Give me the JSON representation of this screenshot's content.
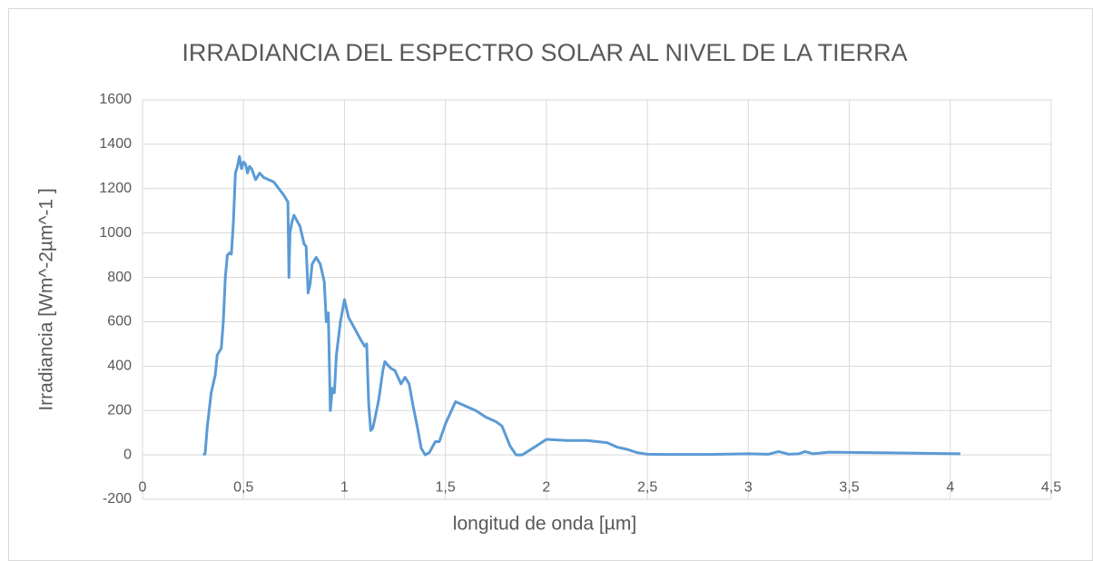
{
  "chart_data": {
    "type": "line",
    "title": "IRRADIANCIA DEL ESPECTRO SOLAR AL NIVEL DE LA TIERRA",
    "xlabel": "longitud de onda [µm]",
    "ylabel": "Irradiancia [Wm^-2µm^-1  ]",
    "x": [
      0.3,
      0.31,
      0.32,
      0.33,
      0.34,
      0.36,
      0.37,
      0.39,
      0.4,
      0.41,
      0.42,
      0.43,
      0.44,
      0.45,
      0.46,
      0.47,
      0.48,
      0.49,
      0.5,
      0.51,
      0.52,
      0.53,
      0.54,
      0.56,
      0.58,
      0.6,
      0.65,
      0.7,
      0.72,
      0.725,
      0.73,
      0.74,
      0.75,
      0.78,
      0.8,
      0.81,
      0.82,
      0.83,
      0.84,
      0.86,
      0.88,
      0.9,
      0.91,
      0.92,
      0.93,
      0.94,
      0.95,
      0.96,
      0.98,
      1.0,
      1.02,
      1.05,
      1.08,
      1.1,
      1.11,
      1.12,
      1.13,
      1.14,
      1.15,
      1.17,
      1.19,
      1.2,
      1.21,
      1.23,
      1.25,
      1.28,
      1.3,
      1.32,
      1.34,
      1.36,
      1.38,
      1.4,
      1.42,
      1.45,
      1.47,
      1.5,
      1.55,
      1.6,
      1.65,
      1.7,
      1.75,
      1.78,
      1.82,
      1.85,
      1.88,
      1.95,
      2.0,
      2.1,
      2.2,
      2.3,
      2.35,
      2.4,
      2.45,
      2.5,
      2.6,
      2.8,
      3.0,
      3.1,
      3.15,
      3.2,
      3.25,
      3.28,
      3.32,
      3.4,
      3.6,
      3.8,
      4.05
    ],
    "series": [
      {
        "name": "Irradiancia",
        "color": "#5b9bd5",
        "values": [
          0,
          5,
          120,
          200,
          280,
          360,
          450,
          480,
          600,
          800,
          900,
          910,
          905,
          1050,
          1270,
          1300,
          1345,
          1290,
          1320,
          1310,
          1270,
          1300,
          1290,
          1240,
          1270,
          1250,
          1230,
          1170,
          1140,
          800,
          1000,
          1050,
          1080,
          1030,
          950,
          940,
          730,
          770,
          860,
          890,
          860,
          780,
          600,
          640,
          200,
          300,
          280,
          450,
          600,
          700,
          620,
          570,
          520,
          490,
          500,
          230,
          110,
          120,
          160,
          250,
          380,
          420,
          410,
          390,
          380,
          320,
          350,
          320,
          220,
          130,
          30,
          0,
          10,
          60,
          60,
          140,
          240,
          220,
          200,
          170,
          150,
          130,
          40,
          0,
          0,
          40,
          70,
          65,
          65,
          55,
          35,
          25,
          10,
          3,
          2,
          2,
          5,
          3,
          15,
          3,
          5,
          15,
          5,
          12,
          10,
          8,
          5
        ]
      }
    ],
    "xlim": [
      0,
      4.5
    ],
    "xticks": [
      0,
      {
        "value": 0.5,
        "label": "0,5"
      },
      1,
      {
        "value": 1.5,
        "label": "1,5"
      },
      2,
      {
        "value": 2.5,
        "label": "2,5"
      },
      3,
      {
        "value": 3.5,
        "label": "3,5"
      },
      4,
      {
        "value": 4.5,
        "label": "4,5"
      }
    ],
    "ylim": [
      -200,
      1600
    ],
    "yticks": [
      -200,
      0,
      200,
      400,
      600,
      800,
      1000,
      1200,
      1400,
      1600
    ],
    "grid": true
  }
}
